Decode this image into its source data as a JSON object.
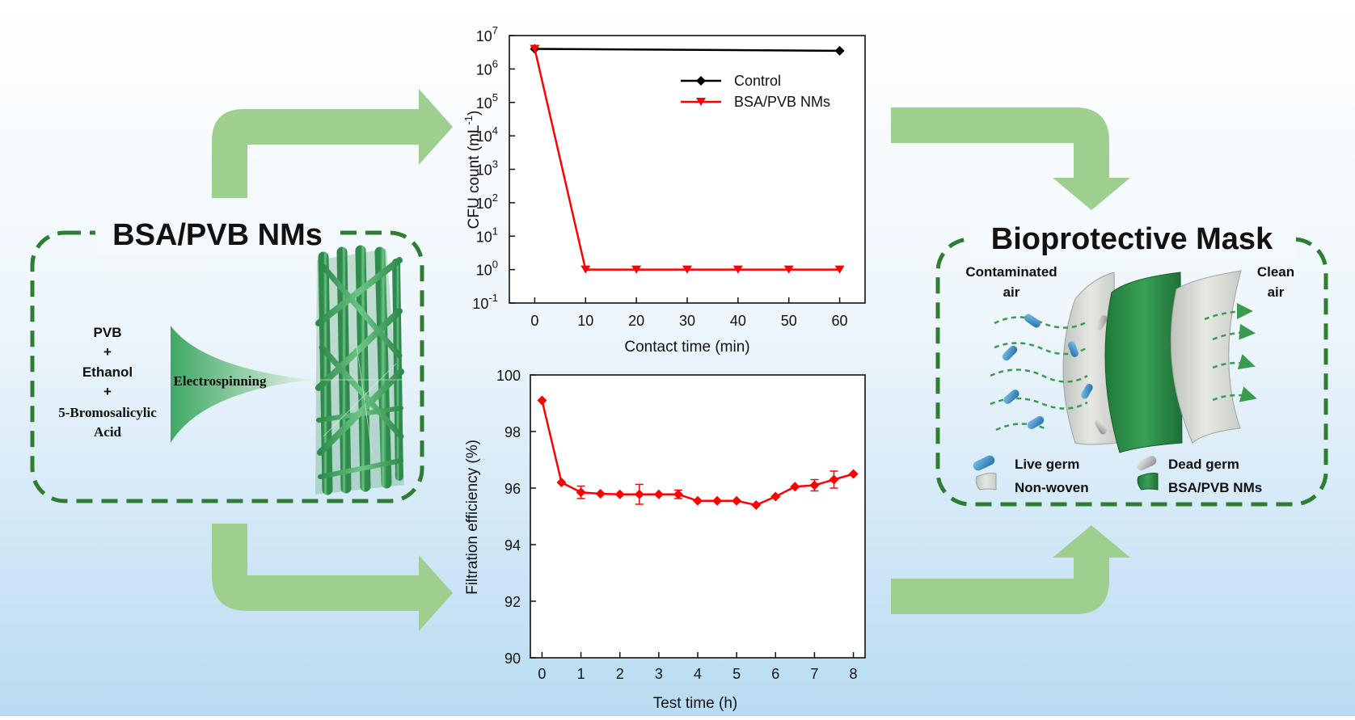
{
  "left_panel": {
    "title": "BSA/PVB NMs",
    "ingredients": [
      "PVB",
      "+",
      "Ethanol",
      "+",
      "5-Bromosalicylic",
      "Acid"
    ],
    "ethanol_color": "#1faa3b",
    "process_label": "Electrospinning"
  },
  "right_panel": {
    "title": "Bioprotective Mask",
    "contaminated_label": [
      "Contaminated",
      "air"
    ],
    "clean_label": [
      "Clean",
      "air"
    ],
    "legend": [
      "Live germ",
      "Dead germ",
      "Non-woven",
      "BSA/PVB NMs"
    ]
  },
  "colors": {
    "arrow": "#9fcf8e",
    "dashed_border": "#2e7d32",
    "fiber": "#4caf68",
    "control_series": "#000000",
    "bsa_series": "#ff0000"
  },
  "chart_data": [
    {
      "type": "line",
      "xlabel": "Contact time (min)",
      "ylabel": "CFU count (mL",
      "ylabel_sup": "-1",
      "ylabel_end": ")",
      "yscale": "log",
      "xlim": [
        -5,
        65
      ],
      "ylim_exp": [
        -1,
        7
      ],
      "x_ticks": [
        0,
        10,
        20,
        30,
        40,
        50,
        60
      ],
      "y_ticks": [
        {
          "base": "10",
          "exp": "-1"
        },
        {
          "base": "10",
          "exp": "0"
        },
        {
          "base": "10",
          "exp": "1"
        },
        {
          "base": "10",
          "exp": "2"
        },
        {
          "base": "10",
          "exp": "3"
        },
        {
          "base": "10",
          "exp": "4"
        },
        {
          "base": "10",
          "exp": "5"
        },
        {
          "base": "10",
          "exp": "6"
        },
        {
          "base": "10",
          "exp": "7"
        }
      ],
      "legend_position": "top-right",
      "series": [
        {
          "name": "Control",
          "marker": "diamond",
          "x": [
            0,
            60
          ],
          "y": [
            4000000,
            3500000
          ]
        },
        {
          "name": "BSA/PVB NMs",
          "marker": "triangle-down",
          "x": [
            0,
            10,
            20,
            30,
            40,
            50,
            60
          ],
          "y": [
            4000000,
            1,
            1,
            1,
            1,
            1,
            1
          ]
        }
      ]
    },
    {
      "type": "line",
      "xlabel": "Test time (h)",
      "ylabel": "Filtration efficiency (%)",
      "xlim": [
        -0.3,
        8.3
      ],
      "ylim": [
        90,
        100
      ],
      "x_ticks": [
        0,
        1,
        2,
        3,
        4,
        5,
        6,
        7,
        8
      ],
      "y_ticks": [
        90,
        92,
        94,
        96,
        98,
        100
      ],
      "series": [
        {
          "marker": "diamond",
          "x": [
            0,
            0.5,
            1,
            1.5,
            2,
            2.5,
            3,
            3.5,
            4,
            4.5,
            5,
            5.5,
            6,
            6.5,
            7,
            7.5,
            8
          ],
          "y": [
            99.1,
            96.2,
            95.85,
            95.8,
            95.78,
            95.78,
            95.78,
            95.78,
            95.55,
            95.55,
            95.55,
            95.4,
            95.7,
            96.05,
            96.1,
            96.3,
            96.5
          ],
          "err": [
            0,
            0,
            0.22,
            0,
            0,
            0.35,
            0,
            0.15,
            0,
            0,
            0,
            0,
            0,
            0,
            0.2,
            0.3,
            0
          ]
        }
      ]
    }
  ]
}
